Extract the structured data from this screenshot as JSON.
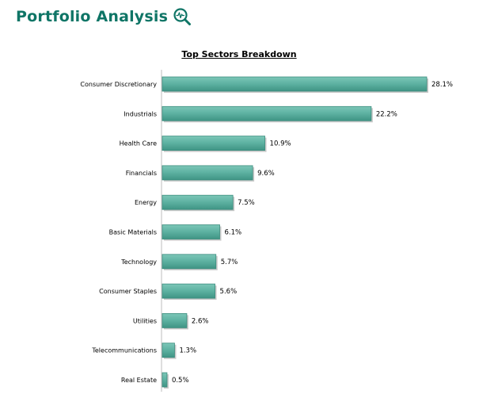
{
  "header": {
    "title": "Portfolio Analysis",
    "icon": "magnifier-pulse-icon",
    "title_color": "#0f7566"
  },
  "chart_data": {
    "type": "bar",
    "orientation": "horizontal",
    "title": "Top Sectors Breakdown",
    "categories": [
      "Consumer Discretionary",
      "Industrials",
      "Health Care",
      "Financials",
      "Energy",
      "Basic Materials",
      "Technology",
      "Consumer Staples",
      "Utilities",
      "Telecommunications",
      "Real Estate"
    ],
    "values": [
      28.1,
      22.2,
      10.9,
      9.6,
      7.5,
      6.1,
      5.7,
      5.6,
      2.6,
      1.3,
      0.5
    ],
    "value_labels": [
      "28.1%",
      "22.2%",
      "10.9%",
      "9.6%",
      "7.5%",
      "6.1%",
      "5.7%",
      "5.6%",
      "2.6%",
      "1.3%",
      "0.5%"
    ],
    "unit": "%",
    "xlim": [
      0,
      28.1
    ],
    "grid": false,
    "legend": "none",
    "bar_color": "#5fb3a3",
    "bar_edge_color": "#3c8d7e"
  }
}
